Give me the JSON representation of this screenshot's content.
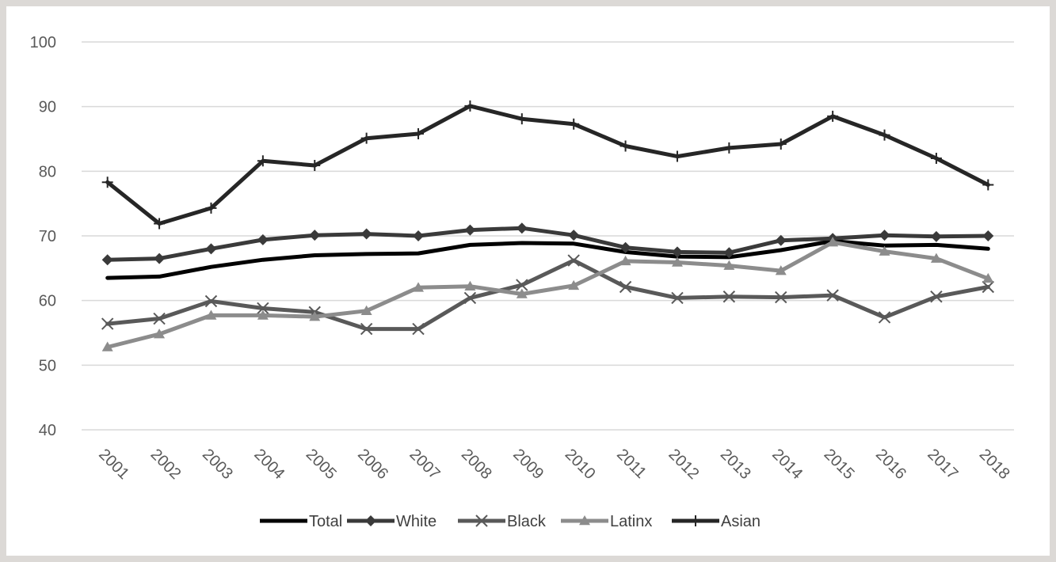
{
  "chart_data": {
    "type": "line",
    "title": "",
    "xlabel": "",
    "ylabel": "",
    "categories": [
      "2001",
      "2002",
      "2003",
      "2004",
      "2005",
      "2006",
      "2007",
      "2008",
      "2009",
      "2010",
      "2011",
      "2012",
      "2013",
      "2014",
      "2015",
      "2016",
      "2017",
      "2018"
    ],
    "ylim": [
      40,
      100
    ],
    "yticks": [
      40,
      50,
      60,
      70,
      80,
      90,
      100
    ],
    "grid": true,
    "legend_position": "bottom",
    "series": [
      {
        "name": "Total",
        "marker": "none",
        "color": "#000000",
        "values": [
          63.5,
          63.7,
          65.2,
          66.3,
          67.0,
          67.2,
          67.3,
          68.6,
          68.9,
          68.8,
          67.5,
          66.8,
          66.7,
          67.8,
          69.2,
          68.5,
          68.6,
          68.0
        ]
      },
      {
        "name": "White",
        "marker": "diamond",
        "color": "#3a3a3a",
        "values": [
          66.3,
          66.5,
          68.0,
          69.4,
          70.1,
          70.3,
          70.0,
          70.9,
          71.2,
          70.1,
          68.2,
          67.5,
          67.4,
          69.3,
          69.6,
          70.1,
          69.9,
          70.0
        ]
      },
      {
        "name": "Black",
        "marker": "x",
        "color": "#595959",
        "values": [
          56.4,
          57.2,
          59.9,
          58.8,
          58.2,
          55.6,
          55.6,
          60.4,
          62.4,
          66.2,
          62.1,
          60.4,
          60.6,
          60.5,
          60.8,
          57.4,
          60.6,
          62.1
        ]
      },
      {
        "name": "Latinx",
        "marker": "triangle",
        "color": "#8c8c8c",
        "values": [
          52.8,
          54.8,
          57.7,
          57.7,
          57.5,
          58.4,
          62.0,
          62.2,
          61.0,
          62.3,
          66.1,
          65.9,
          65.4,
          64.6,
          69.0,
          67.6,
          66.5,
          63.4
        ]
      },
      {
        "name": "Asian",
        "marker": "plus",
        "color": "#262626",
        "values": [
          78.3,
          71.9,
          74.3,
          81.6,
          80.9,
          85.1,
          85.8,
          90.1,
          88.1,
          87.3,
          83.9,
          82.3,
          83.6,
          84.2,
          88.5,
          85.6,
          82.0,
          77.9
        ]
      }
    ]
  }
}
